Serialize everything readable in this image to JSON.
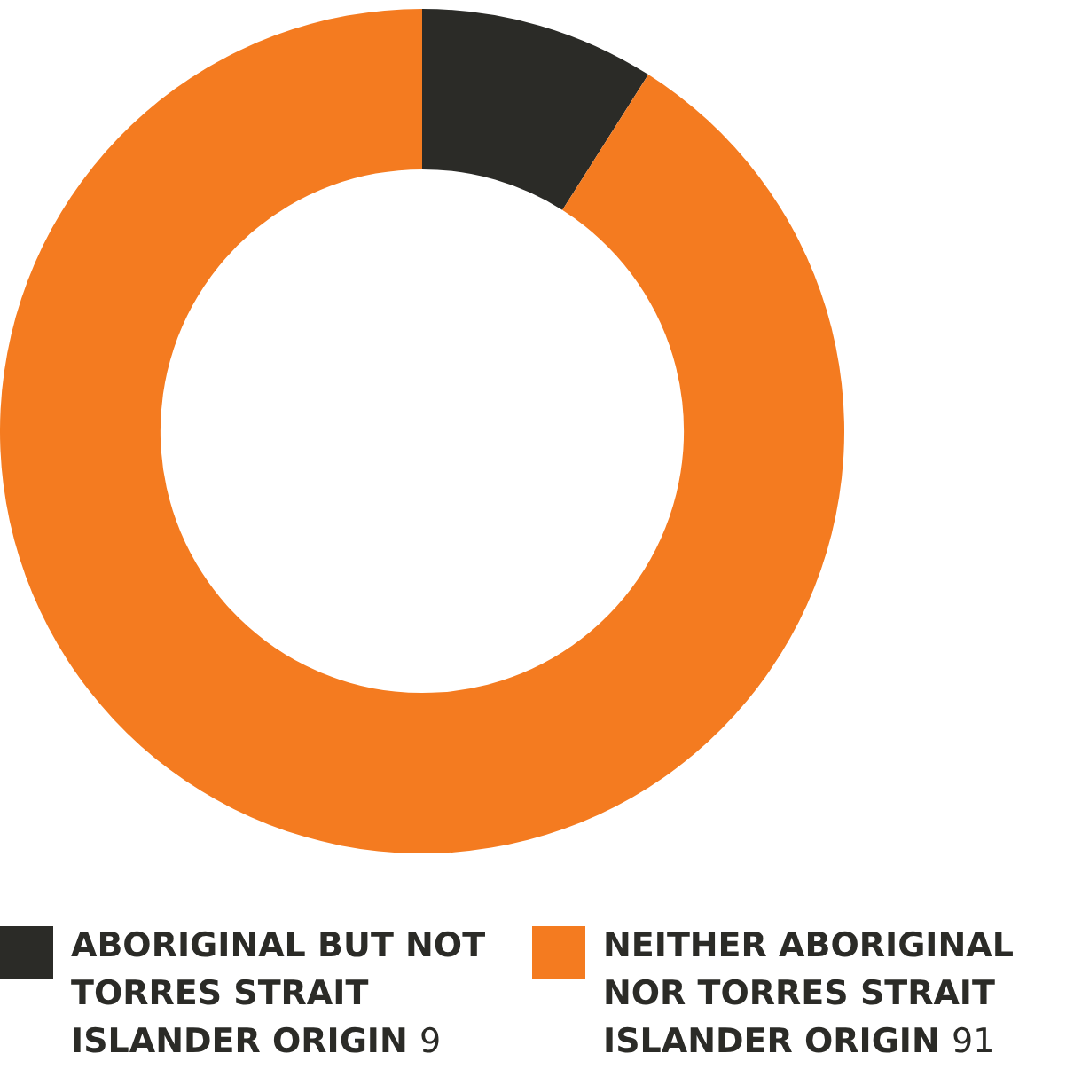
{
  "chart_data": {
    "type": "donut",
    "categories": [
      "ABORIGINAL BUT NOT TORRES STRAIT ISLANDER ORIGIN",
      "NEITHER ABORIGINAL NOR TORRES STRAIT ISLANDER ORIGIN"
    ],
    "values": [
      9,
      91
    ],
    "colors": [
      "#2b2b27",
      "#f47b20"
    ],
    "legend": "bottom",
    "data_labels": true
  }
}
